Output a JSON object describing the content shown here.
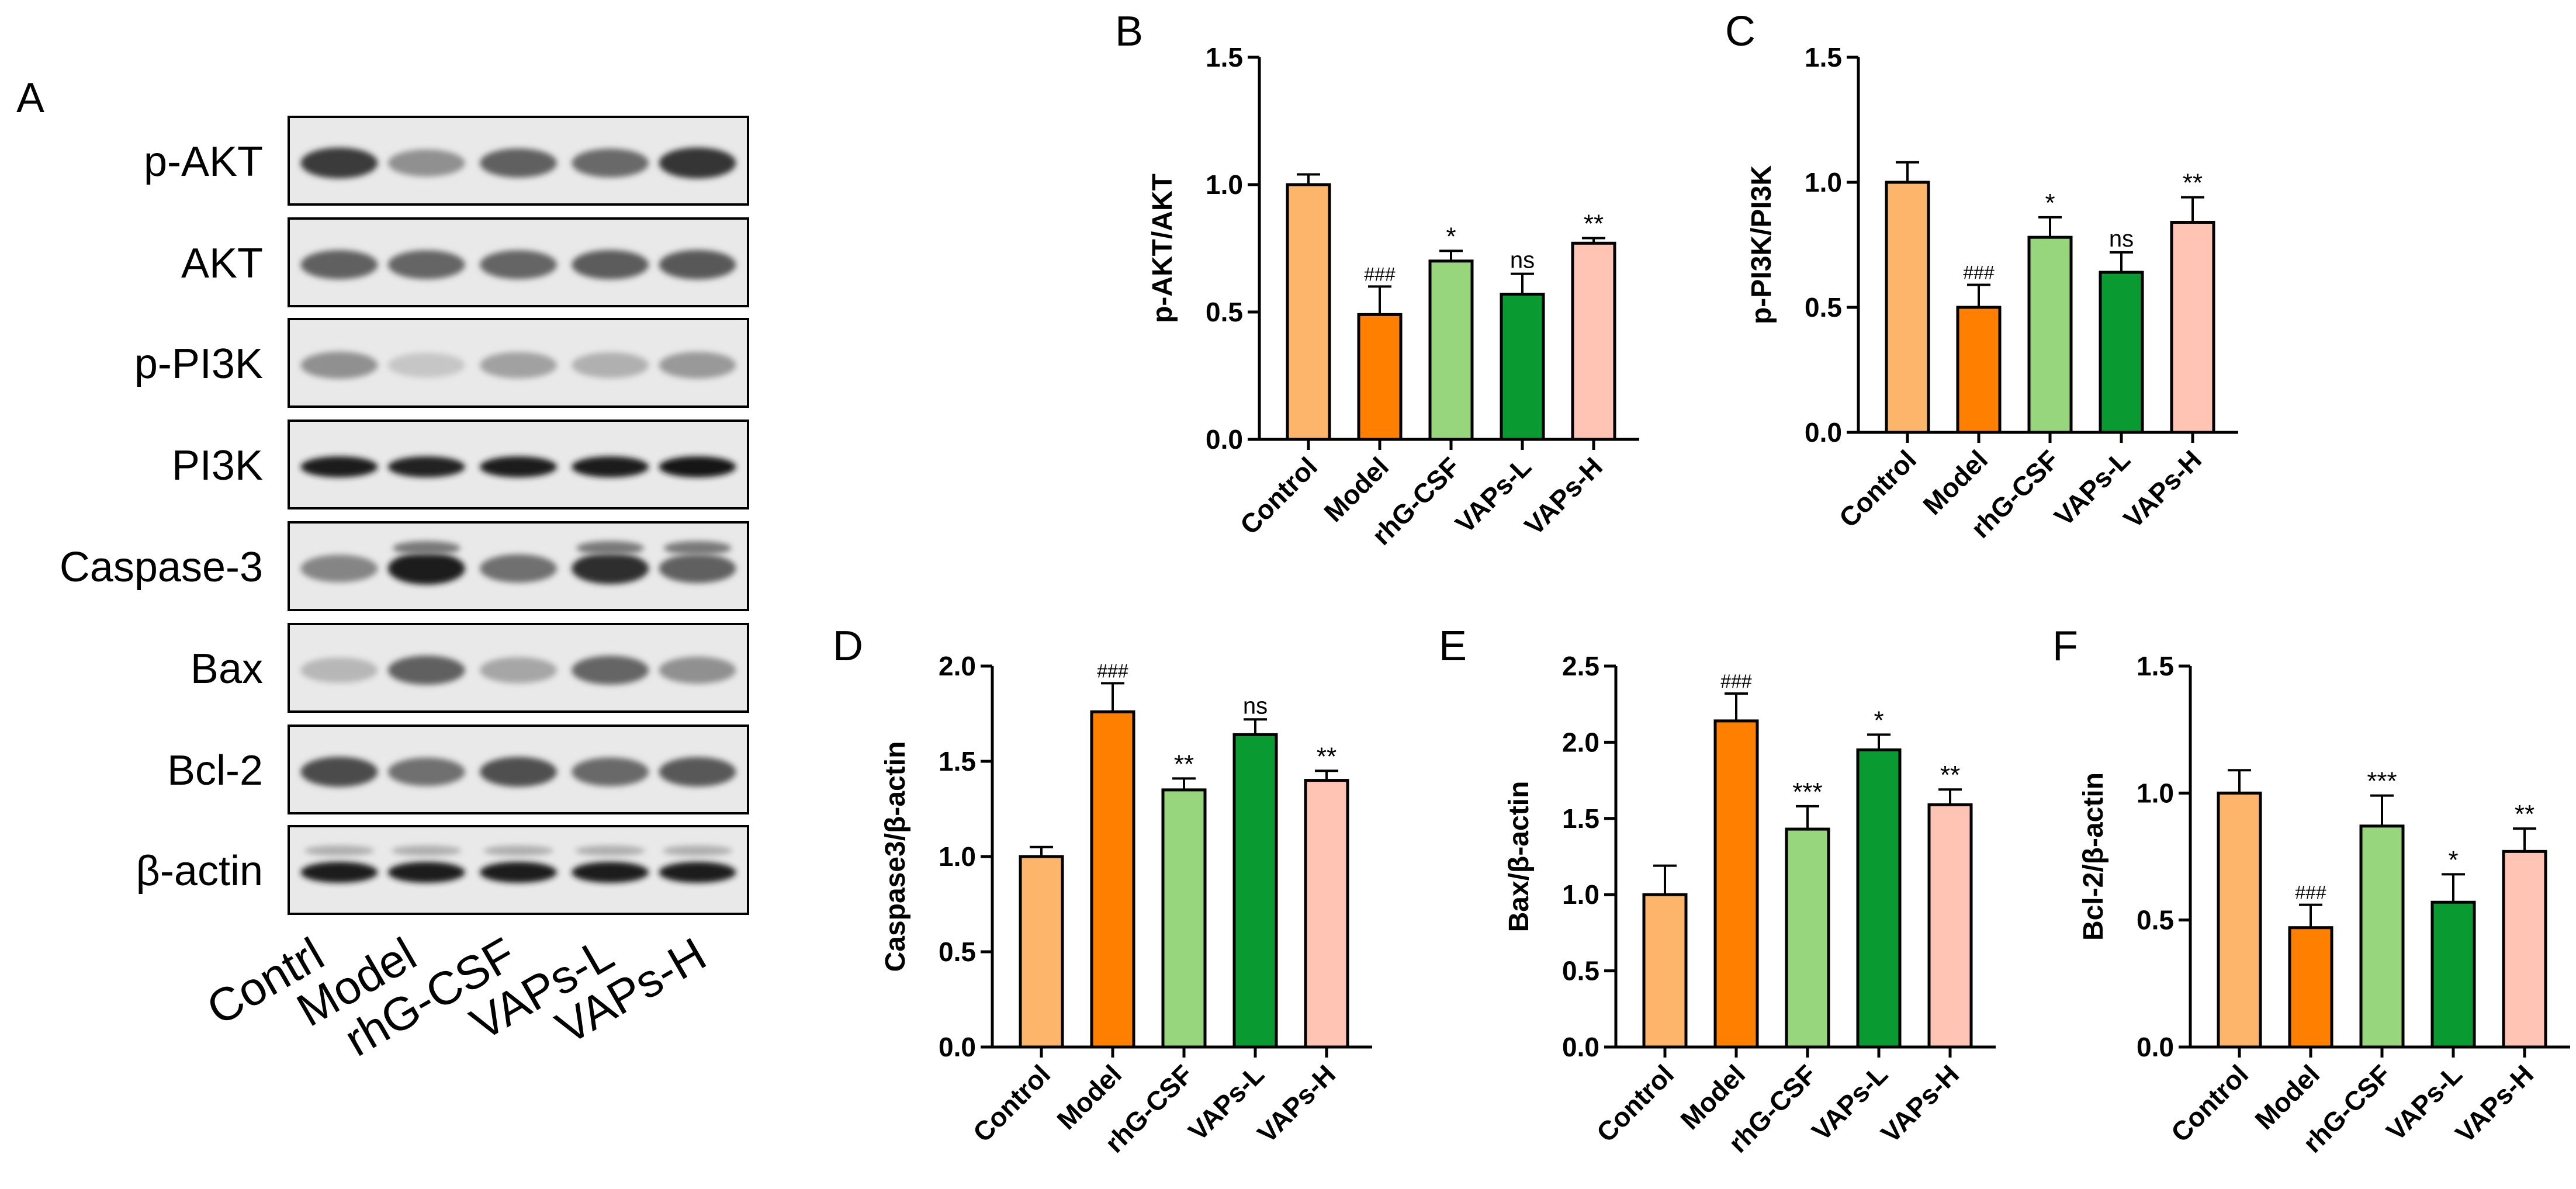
{
  "colors": {
    "Control": "#FDB56C",
    "Model": "#FF7F00",
    "rhG-CSF": "#98D67E",
    "VAPs-L": "#0A9A32",
    "VAPs-H": "#FFC4B4"
  },
  "blot_panel": {
    "letter": "A",
    "proteins": [
      "p-AKT",
      "AKT",
      "p-PI3K",
      "PI3K",
      "Caspase-3",
      "Bax",
      "Bcl-2",
      "β-actin"
    ],
    "lanes": [
      "Contrl",
      "Model",
      "rhG-CSF",
      "VAPs-L",
      "VAPs-H"
    ],
    "band_intensity": {
      "p-AKT": [
        0.8,
        0.4,
        0.62,
        0.58,
        0.82
      ],
      "AKT": [
        0.62,
        0.6,
        0.6,
        0.64,
        0.66
      ],
      "p-PI3K": [
        0.4,
        0.15,
        0.32,
        0.25,
        0.36
      ],
      "PI3K": [
        0.95,
        0.92,
        0.95,
        0.95,
        0.96
      ],
      "Caspase-3": [
        0.45,
        0.95,
        0.55,
        0.85,
        0.62
      ],
      "Bax": [
        0.22,
        0.62,
        0.3,
        0.6,
        0.4
      ],
      "Bcl-2": [
        0.72,
        0.55,
        0.7,
        0.58,
        0.66
      ],
      "β-actin": [
        0.95,
        0.95,
        0.95,
        0.95,
        0.95
      ]
    }
  },
  "chart_data": [
    {
      "panel": "B",
      "type": "bar",
      "categories": [
        "Control",
        "Model",
        "rhG-CSF",
        "VAPs-L",
        "VAPs-H"
      ],
      "values": [
        1.0,
        0.49,
        0.7,
        0.57,
        0.77
      ],
      "errors": [
        0.04,
        0.11,
        0.04,
        0.08,
        0.02
      ],
      "annotations": [
        "",
        "###",
        "*",
        "ns",
        "**"
      ],
      "title": "",
      "xlabel": "",
      "ylabel": "p-AKT/AKT",
      "ylim": [
        0,
        1.5
      ],
      "yticks": [
        "0.0",
        "0.5",
        "1.0",
        "1.5"
      ]
    },
    {
      "panel": "C",
      "type": "bar",
      "categories": [
        "Control",
        "Model",
        "rhG-CSF",
        "VAPs-L",
        "VAPs-H"
      ],
      "values": [
        1.0,
        0.5,
        0.78,
        0.64,
        0.84
      ],
      "errors": [
        0.08,
        0.09,
        0.08,
        0.08,
        0.1
      ],
      "annotations": [
        "",
        "###",
        "*",
        "ns",
        "**"
      ],
      "title": "",
      "xlabel": "",
      "ylabel": "p-PI3K/PI3K",
      "ylim": [
        0,
        1.5
      ],
      "yticks": [
        "0.0",
        "0.5",
        "1.0",
        "1.5"
      ]
    },
    {
      "panel": "D",
      "type": "bar",
      "categories": [
        "Control",
        "Model",
        "rhG-CSF",
        "VAPs-L",
        "VAPs-H"
      ],
      "values": [
        1.0,
        1.76,
        1.35,
        1.64,
        1.4
      ],
      "errors": [
        0.05,
        0.15,
        0.06,
        0.08,
        0.05
      ],
      "annotations": [
        "",
        "###",
        "**",
        "ns",
        "**"
      ],
      "title": "",
      "xlabel": "",
      "ylabel": "Caspase3/β-actin",
      "ylim": [
        0,
        2.0
      ],
      "yticks": [
        "0.0",
        "0.5",
        "1.0",
        "1.5",
        "2.0"
      ]
    },
    {
      "panel": "E",
      "type": "bar",
      "categories": [
        "Control",
        "Model",
        "rhG-CSF",
        "VAPs-L",
        "VAPs-H"
      ],
      "values": [
        1.0,
        2.14,
        1.43,
        1.95,
        1.59
      ],
      "errors": [
        0.19,
        0.18,
        0.15,
        0.1,
        0.1
      ],
      "annotations": [
        "",
        "###",
        "***",
        "*",
        "**"
      ],
      "title": "",
      "xlabel": "",
      "ylabel": "Bax/β-actin",
      "ylim": [
        0,
        2.5
      ],
      "yticks": [
        "0.0",
        "0.5",
        "1.0",
        "1.5",
        "2.0",
        "2.5"
      ]
    },
    {
      "panel": "F",
      "type": "bar",
      "categories": [
        "Control",
        "Model",
        "rhG-CSF",
        "VAPs-L",
        "VAPs-H"
      ],
      "values": [
        1.0,
        0.47,
        0.87,
        0.57,
        0.77
      ],
      "errors": [
        0.09,
        0.09,
        0.12,
        0.11,
        0.09
      ],
      "annotations": [
        "",
        "###",
        "***",
        "*",
        "**"
      ],
      "title": "",
      "xlabel": "",
      "ylabel": "Bcl-2/β-actin",
      "ylim": [
        0,
        1.5
      ],
      "yticks": [
        "0.0",
        "0.5",
        "1.0",
        "1.5"
      ]
    }
  ]
}
